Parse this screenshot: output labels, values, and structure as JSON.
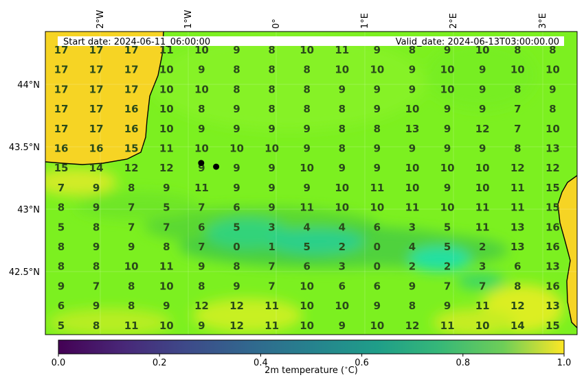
{
  "header": {
    "start_date": "Start date: 2024-06-11_06:00:00",
    "valid_date": "Valid_date: 2024-06-13T03:00:00.00"
  },
  "axes": {
    "lon_labels": [
      "2°W",
      "1°W",
      "0°",
      "1°E",
      "2°E",
      "3°E"
    ],
    "lat_labels": [
      "44°N",
      "43.5°N",
      "43°N",
      "42.5°N"
    ]
  },
  "colorbar": {
    "label": "2m temperature ($^\\circ$C)",
    "ticks": [
      "0.0",
      "0.2",
      "0.4",
      "0.6",
      "0.8",
      "1.0"
    ],
    "colormap": "viridis"
  },
  "chart_data": {
    "type": "heatmap",
    "title": "",
    "xlabel": "",
    "ylabel": "",
    "colorbar_label": "2m temperature ($^\\circ$C)",
    "grid_values": [
      [
        17,
        17,
        17,
        11,
        10,
        9,
        8,
        10,
        11,
        9,
        8,
        9,
        10,
        8,
        8
      ],
      [
        17,
        17,
        17,
        10,
        9,
        8,
        8,
        8,
        10,
        10,
        9,
        10,
        9,
        10,
        10
      ],
      [
        17,
        17,
        17,
        10,
        10,
        8,
        8,
        8,
        9,
        9,
        9,
        10,
        9,
        8,
        9
      ],
      [
        17,
        17,
        16,
        10,
        8,
        9,
        8,
        8,
        8,
        9,
        10,
        9,
        9,
        7,
        8
      ],
      [
        17,
        17,
        16,
        10,
        9,
        9,
        9,
        9,
        8,
        8,
        13,
        9,
        12,
        7,
        10
      ],
      [
        16,
        16,
        15,
        11,
        10,
        10,
        10,
        9,
        8,
        9,
        9,
        9,
        9,
        8,
        13
      ],
      [
        15,
        14,
        12,
        12,
        9,
        9,
        9,
        10,
        9,
        9,
        10,
        10,
        10,
        12,
        12
      ],
      [
        7,
        9,
        8,
        9,
        11,
        9,
        9,
        9,
        10,
        11,
        10,
        9,
        10,
        11,
        15
      ],
      [
        8,
        9,
        7,
        5,
        7,
        6,
        9,
        11,
        10,
        10,
        11,
        10,
        11,
        11,
        15
      ],
      [
        5,
        8,
        7,
        7,
        6,
        5,
        3,
        4,
        4,
        6,
        3,
        5,
        11,
        13,
        16
      ],
      [
        8,
        9,
        9,
        8,
        7,
        0,
        1,
        5,
        2,
        0,
        4,
        5,
        2,
        13,
        16
      ],
      [
        8,
        8,
        10,
        11,
        9,
        8,
        7,
        6,
        3,
        0,
        2,
        2,
        3,
        6,
        13
      ],
      [
        9,
        7,
        8,
        10,
        8,
        9,
        7,
        10,
        6,
        6,
        9,
        7,
        7,
        8,
        16
      ],
      [
        6,
        9,
        8,
        9,
        12,
        12,
        11,
        10,
        10,
        9,
        8,
        9,
        11,
        12,
        13
      ],
      [
        5,
        8,
        11,
        10,
        9,
        12,
        11,
        10,
        9,
        10,
        12,
        11,
        10,
        14,
        15
      ]
    ],
    "points": [
      {
        "lon": -0.85,
        "lat": 43.37
      },
      {
        "lon": -0.68,
        "lat": 43.34
      }
    ]
  },
  "colors": {
    "sea": "#f5d623",
    "land_low": "#7df020",
    "mountain": "#33c857",
    "peak": "#22e29a",
    "text": "#2a4a1a"
  }
}
